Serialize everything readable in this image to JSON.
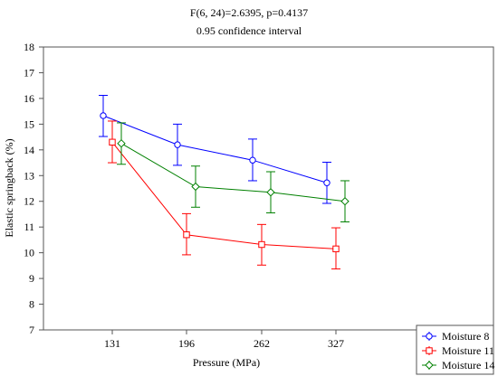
{
  "chart_data": {
    "type": "line",
    "title": "F(6, 24)=2.6395, p=0.4137",
    "subtitle": "0.95 confidence interval",
    "xlabel": "Pressure (MPa)",
    "ylabel": "Elastic springback (%)",
    "categories": [
      "131",
      "196",
      "262",
      "327"
    ],
    "ylim": [
      7,
      18
    ],
    "yticks": [
      7,
      8,
      9,
      10,
      11,
      12,
      13,
      14,
      15,
      16,
      17,
      18
    ],
    "grid": false,
    "legend_position": "bottom-right",
    "series": [
      {
        "name": "Moisture 8",
        "color": "#0000ff",
        "marker": "circle",
        "values": [
          15.33,
          14.2,
          13.6,
          12.72
        ],
        "ci_low": [
          14.52,
          13.4,
          12.8,
          11.92
        ],
        "ci_high": [
          16.12,
          15.0,
          14.42,
          13.52
        ]
      },
      {
        "name": "Moisture 11",
        "color": "#ff0000",
        "marker": "square",
        "values": [
          14.3,
          10.7,
          10.32,
          10.15
        ],
        "ci_low": [
          13.5,
          9.92,
          9.52,
          9.37
        ],
        "ci_high": [
          15.12,
          11.52,
          11.1,
          10.97
        ]
      },
      {
        "name": "Moisture 14",
        "color": "#008000",
        "marker": "diamond",
        "values": [
          14.25,
          12.57,
          12.35,
          12.0
        ],
        "ci_low": [
          13.44,
          11.77,
          11.55,
          11.2
        ],
        "ci_high": [
          15.05,
          13.37,
          13.15,
          12.8
        ]
      }
    ]
  }
}
